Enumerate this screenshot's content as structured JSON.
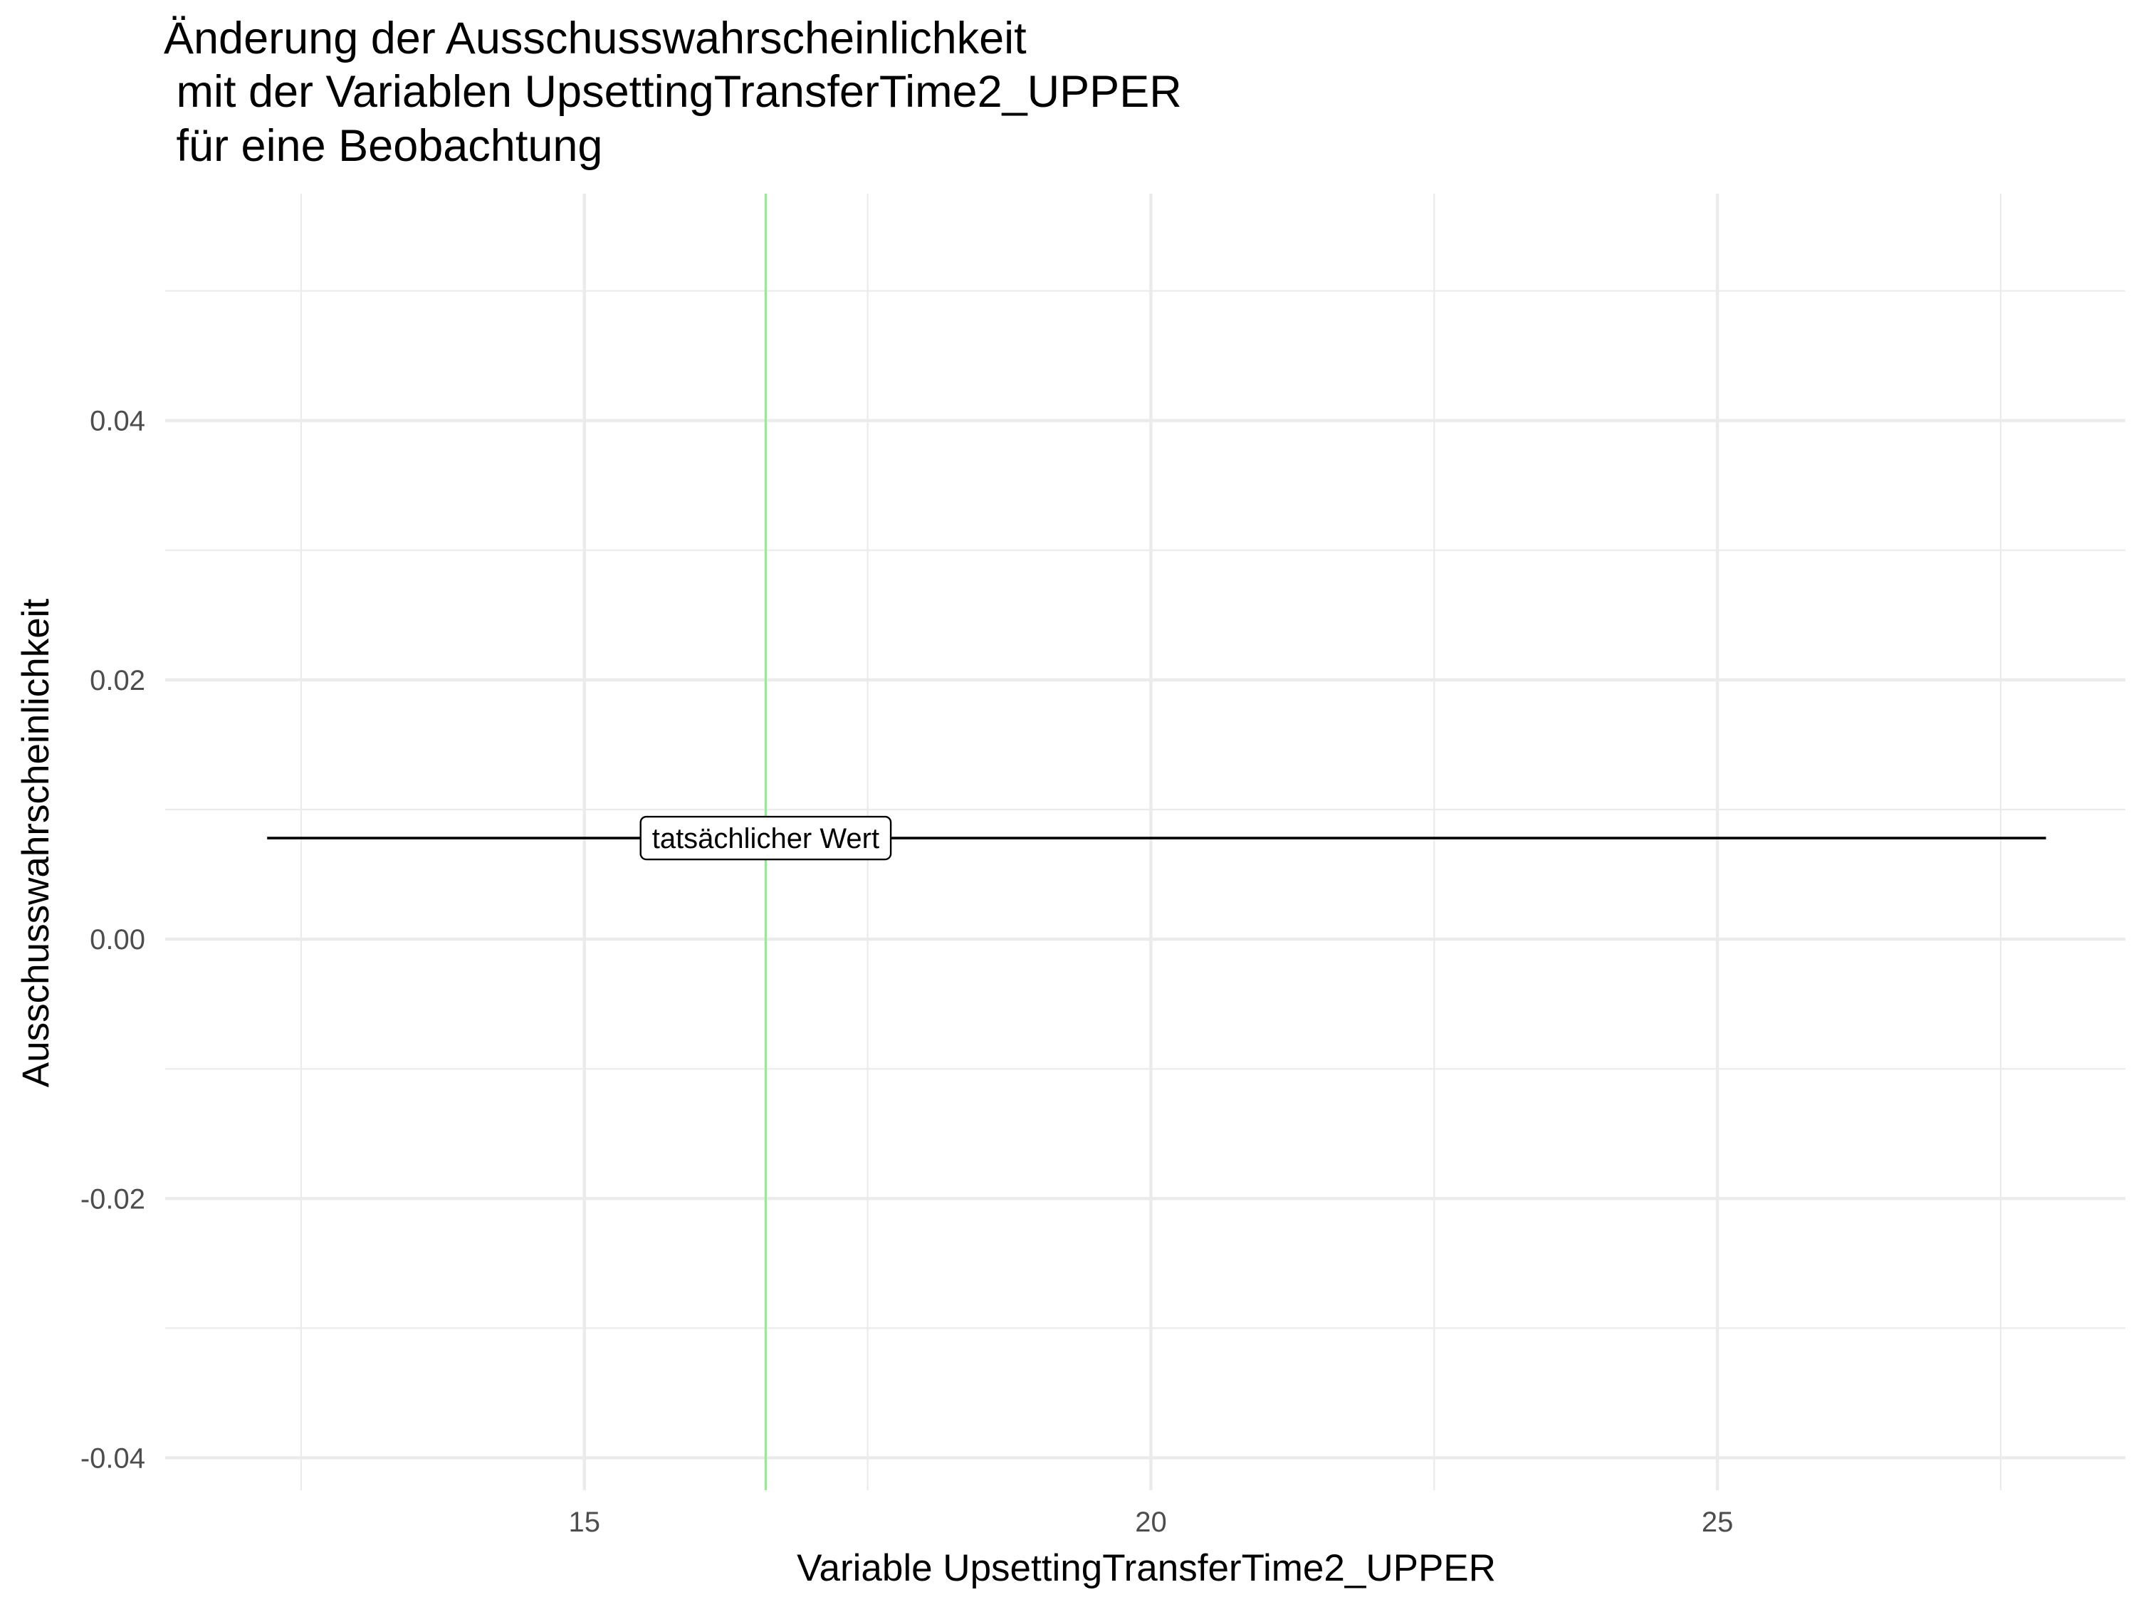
{
  "chart_data": {
    "type": "line",
    "title_lines": [
      "Änderung der Ausschusswahrscheinlichkeit",
      " mit der Variablen UpsettingTransferTime2_UPPER",
      " für eine Beobachtung"
    ],
    "xlabel": "Variable UpsettingTransferTime2_UPPER",
    "ylabel": "Ausschusswahrscheinlichkeit",
    "xlim": [
      11.3,
      28.6
    ],
    "ylim": [
      -0.0425,
      0.0575
    ],
    "x_ticks": [
      15,
      20,
      25
    ],
    "x_tick_labels": [
      "15",
      "20",
      "25"
    ],
    "x_minor_grid": [
      12.5,
      17.5,
      22.5,
      27.5
    ],
    "y_ticks": [
      -0.04,
      -0.02,
      0.0,
      0.02,
      0.04
    ],
    "y_tick_labels": [
      "-0.04",
      "-0.02",
      "0.00",
      "0.02",
      "0.04"
    ],
    "y_minor_grid": [
      -0.03,
      -0.01,
      0.01,
      0.03,
      0.05
    ],
    "grid": true,
    "legend": "none",
    "series": [
      {
        "x": [
          12.2,
          27.9
        ],
        "y": [
          0.0078,
          0.0078
        ],
        "color": "#000000"
      }
    ],
    "actual_value_line": {
      "x": 16.6,
      "color": "#90ee90"
    },
    "annotation": {
      "text": "tatsächlicher Wert",
      "x": 16.6,
      "y": 0.0078
    },
    "colors": {
      "grid_major": "#ebebeb",
      "grid_minor": "#ebebeb",
      "tick_text": "#4d4d4d",
      "text": "#000000"
    }
  }
}
